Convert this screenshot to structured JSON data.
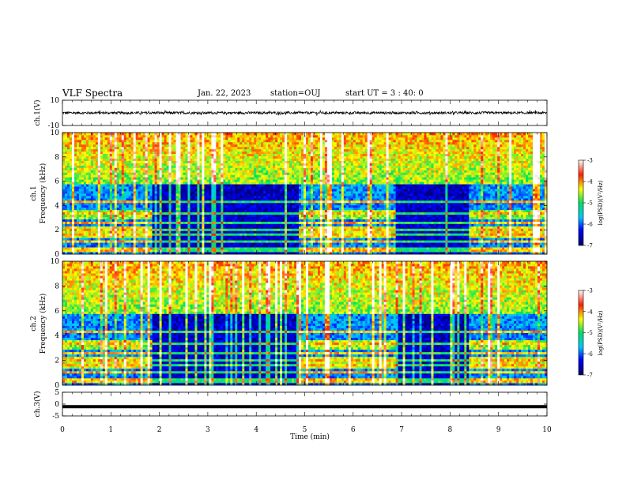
{
  "header": {
    "title": "VLF Spectra",
    "date": "Jan. 22, 2023",
    "station": "station=OUJ",
    "start_ut": "start UT =  3 : 40: 0"
  },
  "chart_data": {
    "type": "heatmap",
    "xlabel": "Time (min)",
    "xlim": [
      0,
      10
    ],
    "x_ticks": [
      "0",
      "1",
      "2",
      "3",
      "4",
      "5",
      "6",
      "7",
      "8",
      "9",
      "10"
    ],
    "panels": [
      {
        "id": "ch1-wave",
        "type": "line",
        "ylabel": "ch.1(V)",
        "ylim": [
          -10,
          10
        ],
        "y_ticks": [
          "10",
          "-10"
        ],
        "description_level": "noisy waveform near 0 V with spikes up to about ±3 V"
      },
      {
        "id": "ch1-spec",
        "type": "heatmap",
        "ylabel": "ch.1\nFrequency (kHz)",
        "ylim": [
          0,
          10
        ],
        "y_ticks": [
          "0",
          "2",
          "4",
          "6",
          "8",
          "10"
        ],
        "colorbar": {
          "label": "log(PSD)(V²/Hz)",
          "range": [
            -7,
            -3
          ],
          "ticks": [
            "-3",
            "-4",
            "-5",
            "-6",
            "-7"
          ]
        },
        "quiet_periods_min": [
          [
            1.85,
            4.9
          ],
          [
            6.9,
            8.4
          ]
        ],
        "bands_khz": [
          0.4,
          1.0,
          1.6,
          2.0,
          2.6,
          3.3,
          4.3
        ]
      },
      {
        "id": "ch2-spec",
        "type": "heatmap",
        "ylabel": "ch.2\nFrequency (kHz)",
        "ylim": [
          0,
          10
        ],
        "y_ticks": [
          "0",
          "2",
          "4",
          "6",
          "8",
          "10"
        ],
        "colorbar": {
          "label": "log(PSD)(V²/Hz)",
          "range": [
            -7,
            -3
          ],
          "ticks": [
            "-3",
            "-4",
            "-5",
            "-6",
            "-7"
          ]
        },
        "quiet_periods_min": [
          [
            1.85,
            4.9
          ],
          [
            6.9,
            8.4
          ]
        ],
        "bands_khz": [
          0.4,
          1.0,
          1.6,
          2.0,
          2.6,
          3.3,
          4.3
        ]
      },
      {
        "id": "ch3-wave",
        "type": "line",
        "ylabel": "ch.3(V)",
        "ylim": [
          -5,
          5
        ],
        "y_ticks": [
          "5",
          "0",
          "-5"
        ],
        "constant_value": -1.1
      }
    ]
  },
  "colors": {
    "low": "#00007a",
    "mid": "#00c850",
    "high": "#ff2000",
    "wave": "#000000"
  }
}
